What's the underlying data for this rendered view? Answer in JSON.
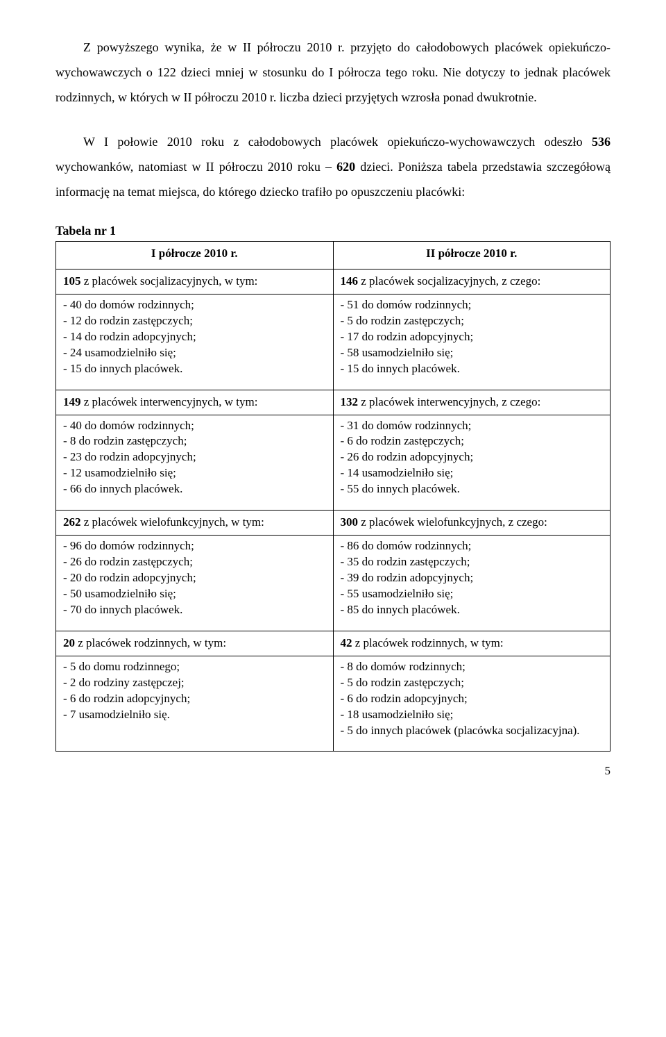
{
  "paragraphs": {
    "p1": "Z powyższego wynika, że w II półroczu 2010 r. przyjęto do całodobowych placówek opiekuńczo-wychowawczych o 122 dzieci mniej w stosunku do I półrocza tego roku. Nie dotyczy to jednak placówek rodzinnych, w których w II półroczu 2010 r. liczba dzieci przyjętych wzrosła ponad dwukrotnie.",
    "p2_a": "W I połowie 2010 roku z całodobowych placówek opiekuńczo-wychowawczych odeszło ",
    "p2_b": "536",
    "p2_c": " wychowanków, natomiast w II półroczu 2010 roku – ",
    "p2_d": "620",
    "p2_e": " dzieci. Poniższa tabela przedstawia szczegółową informację na temat miejsca, do którego dziecko trafiło po opuszczeniu placówki:"
  },
  "table_label": "Tabela nr 1",
  "headers": {
    "col1": "I półrocze 2010 r.",
    "col2": "II półrocze 2010 r."
  },
  "sections": [
    {
      "left_title_b": "105",
      "left_title_t": " z placówek socjalizacyjnych, w tym:",
      "right_title_b": "146",
      "right_title_t": " z placówek socjalizacyjnych, z czego:",
      "left_items": [
        "- 40 do domów rodzinnych;",
        "- 12 do rodzin zastępczych;",
        "- 14 do rodzin adopcyjnych;",
        "- 24 usamodzielniło się;",
        "- 15 do innych placówek."
      ],
      "right_items": [
        "- 51 do domów rodzinnych;",
        "- 5 do rodzin zastępczych;",
        "- 17 do rodzin adopcyjnych;",
        "- 58 usamodzielniło się;",
        "- 15 do innych placówek."
      ]
    },
    {
      "left_title_b": "149",
      "left_title_t": " z placówek interwencyjnych, w tym:",
      "right_title_b": "132",
      "right_title_t": " z placówek interwencyjnych, z czego:",
      "left_items": [
        "- 40 do domów rodzinnych;",
        "- 8 do rodzin zastępczych;",
        "- 23 do rodzin adopcyjnych;",
        "- 12 usamodzielniło się;",
        "- 66 do innych placówek."
      ],
      "right_items": [
        "- 31 do domów rodzinnych;",
        "- 6 do rodzin zastępczych;",
        "- 26 do rodzin adopcyjnych;",
        "- 14 usamodzielniło się;",
        "- 55 do innych placówek."
      ]
    },
    {
      "left_title_b": "262",
      "left_title_t": " z placówek wielofunkcyjnych, w tym:",
      "right_title_b": "300",
      "right_title_t": " z placówek wielofunkcyjnych, z czego:",
      "left_items": [
        "- 96 do domów rodzinnych;",
        "- 26 do rodzin zastępczych;",
        "- 20 do rodzin adopcyjnych;",
        "- 50 usamodzielniło się;",
        "- 70 do innych placówek."
      ],
      "right_items": [
        "- 86 do domów rodzinnych;",
        "- 35 do rodzin zastępczych;",
        "- 39 do rodzin adopcyjnych;",
        "- 55 usamodzielniło się;",
        "- 85 do innych placówek."
      ]
    },
    {
      "left_title_b": "20",
      "left_title_t": " z placówek rodzinnych, w tym:",
      "right_title_b": " 42",
      "right_title_t": " z placówek rodzinnych, w tym:",
      "left_items": [
        "- 5 do domu rodzinnego;",
        "- 2 do rodziny zastępczej;",
        "- 6 do rodzin adopcyjnych;",
        "- 7 usamodzielniło się."
      ],
      "right_items": [
        "- 8 do domów rodzinnych;",
        "- 5 do rodzin zastępczych;",
        "- 6 do rodzin adopcyjnych;",
        "- 18 usamodzielniło się;",
        "- 5 do innych placówek (placówka socjalizacyjna)."
      ]
    }
  ],
  "page_number": "5"
}
